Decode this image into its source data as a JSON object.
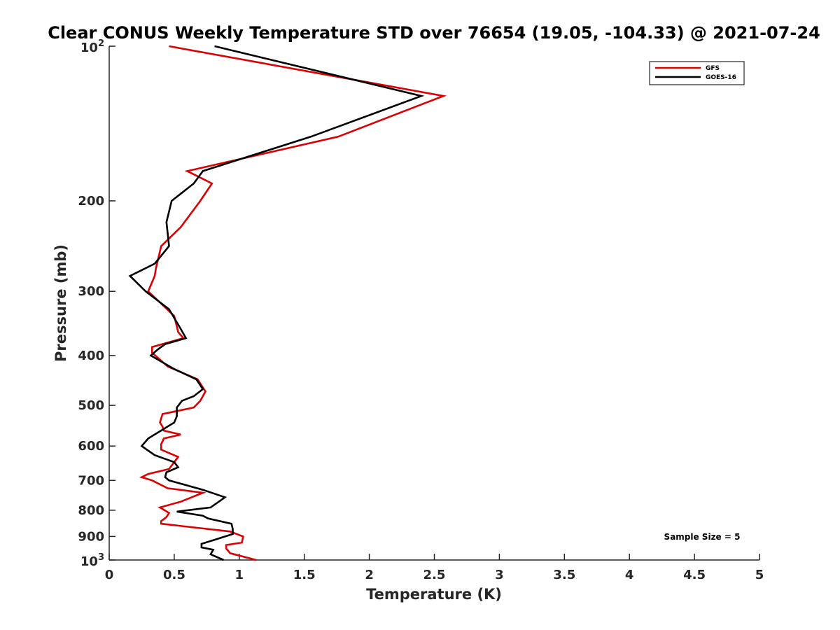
{
  "chart_data": {
    "type": "line",
    "title": "Clear CONUS Weekly Temperature STD over 76654 (19.05, -104.33) @ 2021-07-24",
    "xlabel": "Temperature (K)",
    "ylabel": "Pressure (mb)",
    "xlim": [
      0,
      5
    ],
    "ylim": [
      1000,
      100
    ],
    "y_scale": "log",
    "y_reversed": true,
    "x_ticks": [
      "0",
      "0.5",
      "1",
      "1.5",
      "2",
      "2.5",
      "3",
      "3.5",
      "4",
      "4.5",
      "5"
    ],
    "y_ticks": [
      {
        "value": 200,
        "label": "200"
      },
      {
        "value": 300,
        "label": "300"
      },
      {
        "value": 400,
        "label": "400"
      },
      {
        "value": 500,
        "label": "500"
      },
      {
        "value": 600,
        "label": "600"
      },
      {
        "value": 700,
        "label": "700"
      },
      {
        "value": 800,
        "label": "800"
      },
      {
        "value": 900,
        "label": "900"
      }
    ],
    "y_ticks_pow": [
      {
        "value": 100,
        "base": "10",
        "exp": "2"
      },
      {
        "value": 1000,
        "base": "10",
        "exp": "3"
      }
    ],
    "grid": false,
    "legend_position": "top-right",
    "annotation": "Sample Size = 5",
    "series": [
      {
        "name": "GFS",
        "color": "#dd0000",
        "points": [
          [
            0.46,
            100
          ],
          [
            2.57,
            125
          ],
          [
            1.76,
            150
          ],
          [
            0.6,
            175
          ],
          [
            0.79,
            185
          ],
          [
            0.7,
            200
          ],
          [
            0.55,
            225
          ],
          [
            0.4,
            245
          ],
          [
            0.36,
            270
          ],
          [
            0.35,
            280
          ],
          [
            0.3,
            300
          ],
          [
            0.5,
            335
          ],
          [
            0.53,
            360
          ],
          [
            0.57,
            370
          ],
          [
            0.33,
            385
          ],
          [
            0.33,
            395
          ],
          [
            0.45,
            420
          ],
          [
            0.68,
            445
          ],
          [
            0.74,
            470
          ],
          [
            0.7,
            490
          ],
          [
            0.65,
            505
          ],
          [
            0.41,
            520
          ],
          [
            0.39,
            540
          ],
          [
            0.41,
            550
          ],
          [
            0.42,
            560
          ],
          [
            0.55,
            570
          ],
          [
            0.42,
            580
          ],
          [
            0.4,
            595
          ],
          [
            0.4,
            610
          ],
          [
            0.53,
            630
          ],
          [
            0.48,
            655
          ],
          [
            0.46,
            665
          ],
          [
            0.3,
            680
          ],
          [
            0.25,
            690
          ],
          [
            0.33,
            700
          ],
          [
            0.45,
            725
          ],
          [
            0.72,
            740
          ],
          [
            0.55,
            770
          ],
          [
            0.39,
            790
          ],
          [
            0.46,
            810
          ],
          [
            0.44,
            825
          ],
          [
            0.4,
            840
          ],
          [
            0.4,
            850
          ],
          [
            0.93,
            880
          ],
          [
            1.03,
            900
          ],
          [
            1.02,
            925
          ],
          [
            0.9,
            935
          ],
          [
            0.9,
            950
          ],
          [
            0.93,
            970
          ],
          [
            1.13,
            1000
          ]
        ]
      },
      {
        "name": "GOES-16",
        "color": "#000000",
        "points": [
          [
            0.81,
            100
          ],
          [
            2.4,
            125
          ],
          [
            1.55,
            150
          ],
          [
            0.72,
            175
          ],
          [
            0.65,
            185
          ],
          [
            0.48,
            200
          ],
          [
            0.44,
            220
          ],
          [
            0.46,
            245
          ],
          [
            0.35,
            265
          ],
          [
            0.16,
            280
          ],
          [
            0.28,
            300
          ],
          [
            0.46,
            325
          ],
          [
            0.55,
            355
          ],
          [
            0.59,
            370
          ],
          [
            0.43,
            380
          ],
          [
            0.37,
            390
          ],
          [
            0.32,
            400
          ],
          [
            0.5,
            425
          ],
          [
            0.67,
            445
          ],
          [
            0.72,
            465
          ],
          [
            0.65,
            480
          ],
          [
            0.56,
            490
          ],
          [
            0.52,
            505
          ],
          [
            0.52,
            525
          ],
          [
            0.5,
            540
          ],
          [
            0.3,
            580
          ],
          [
            0.25,
            600
          ],
          [
            0.35,
            625
          ],
          [
            0.5,
            645
          ],
          [
            0.53,
            660
          ],
          [
            0.44,
            675
          ],
          [
            0.43,
            690
          ],
          [
            0.46,
            700
          ],
          [
            0.72,
            730
          ],
          [
            0.89,
            755
          ],
          [
            0.78,
            790
          ],
          [
            0.52,
            805
          ],
          [
            0.72,
            820
          ],
          [
            0.76,
            830
          ],
          [
            0.94,
            850
          ],
          [
            0.95,
            870
          ],
          [
            0.95,
            890
          ],
          [
            0.8,
            915
          ],
          [
            0.71,
            930
          ],
          [
            0.71,
            945
          ],
          [
            0.8,
            955
          ],
          [
            0.78,
            975
          ],
          [
            0.88,
            1000
          ]
        ]
      }
    ]
  }
}
